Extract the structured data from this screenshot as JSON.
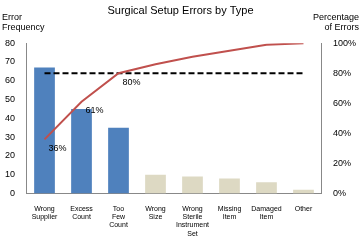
{
  "chart_data": {
    "type": "bar",
    "title": "Surgical Setup Errors by Type",
    "ylabel": "Error Frequency",
    "y2label": "Percentage of Errors",
    "categories": [
      "Wrong Supplier",
      "Excess Count",
      "Too Few Count",
      "Wrong Size",
      "Wrong Sterile Instrument Set",
      "Missing Item",
      "Damaged Item",
      "Other"
    ],
    "ylim": [
      0,
      80
    ],
    "yticks": [
      0,
      10,
      20,
      30,
      40,
      50,
      60,
      70,
      80
    ],
    "y2lim": [
      0,
      100
    ],
    "y2ticks": [
      {
        "value": 0,
        "label": "0%"
      },
      {
        "value": 20,
        "label": "20%"
      },
      {
        "value": 40,
        "label": "40%"
      },
      {
        "value": 60,
        "label": "60%"
      },
      {
        "value": 80,
        "label": "80%"
      },
      {
        "value": 100,
        "label": "100%"
      }
    ],
    "grid": false,
    "series": [
      {
        "type": "bar",
        "colors": [
          "#4f81bd",
          "#4f81bd",
          "#4f81bd",
          "#ddd9c3",
          "#ddd9c3",
          "#ddd9c3",
          "#ddd9c3",
          "#ddd9c3"
        ],
        "values": [
          67,
          45,
          35,
          10,
          9,
          8,
          6,
          2
        ]
      },
      {
        "type": "line",
        "color": "#c0504d",
        "axis": "y2",
        "values": [
          36,
          61,
          80,
          86,
          91,
          95,
          99,
          100
        ],
        "data_labels": true,
        "value_labels": [
          "36%",
          "61%",
          "80%",
          null,
          null,
          null,
          null,
          null
        ]
      },
      {
        "type": "line",
        "color": "#000000",
        "axis": "y2",
        "line_style": "dashed",
        "values": [
          80,
          80,
          80,
          80,
          80,
          80,
          80,
          80
        ]
      }
    ]
  }
}
